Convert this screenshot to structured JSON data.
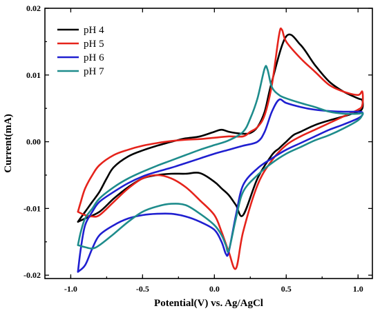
{
  "chart_data": {
    "type": "line",
    "title": "",
    "xlabel": "Potential(V) vs. Ag/AgCl",
    "ylabel": "Current(mA)",
    "xlim": [
      -1.18,
      1.1
    ],
    "ylim": [
      -0.0205,
      0.02
    ],
    "xticks": [
      -1.0,
      -0.5,
      0.0,
      0.5,
      1.0
    ],
    "xtick_labels": [
      "-1.0",
      "-0.5",
      "0.0",
      "0.5",
      "1.0"
    ],
    "yticks": [
      0.02,
      0.01,
      0.0,
      -0.01,
      -0.02
    ],
    "ytick_labels": [
      "0.02",
      "0.01",
      "0.00",
      "-0.01",
      "-0.02"
    ],
    "grid": false,
    "legend_position": "top-left",
    "series": [
      {
        "name": "pH 4",
        "color": "#000000",
        "x": [
          -0.95,
          -0.9,
          -0.8,
          -0.7,
          -0.6,
          -0.5,
          -0.4,
          -0.3,
          -0.2,
          -0.1,
          0.0,
          0.05,
          0.1,
          0.15,
          0.2,
          0.3,
          0.4,
          0.45,
          0.5,
          0.55,
          0.6,
          0.7,
          0.8,
          0.9,
          1.0,
          1.03,
          1.03,
          1.0,
          0.9,
          0.8,
          0.7,
          0.6,
          0.5,
          0.4,
          0.35,
          0.3,
          0.25,
          0.2,
          0.15,
          0.1,
          0.05,
          0.0,
          -0.1,
          -0.2,
          -0.3,
          -0.35,
          -0.4,
          -0.5,
          -0.6,
          -0.7,
          -0.75,
          -0.8,
          -0.85,
          -0.9,
          -0.95
        ],
        "y": [
          -0.012,
          -0.0115,
          -0.0105,
          -0.0085,
          -0.0068,
          -0.0055,
          -0.005,
          -0.0048,
          -0.0048,
          -0.0047,
          -0.006,
          -0.007,
          -0.008,
          -0.0095,
          -0.011,
          -0.0055,
          -0.002,
          -0.001,
          0.0,
          0.001,
          0.0015,
          0.0025,
          0.0032,
          0.0038,
          0.0045,
          0.005,
          0.0062,
          0.0065,
          0.0075,
          0.009,
          0.0115,
          0.0145,
          0.0158,
          0.009,
          0.0045,
          0.0022,
          0.0013,
          0.0012,
          0.0013,
          0.0015,
          0.0018,
          0.0015,
          0.0008,
          0.0005,
          0.0,
          -0.0003,
          -0.0006,
          -0.0013,
          -0.0022,
          -0.0038,
          -0.0055,
          -0.0075,
          -0.009,
          -0.0105,
          -0.012
        ]
      },
      {
        "name": "pH 5",
        "color": "#e5231b",
        "x": [
          -0.95,
          -0.9,
          -0.85,
          -0.8,
          -0.7,
          -0.6,
          -0.5,
          -0.4,
          -0.3,
          -0.2,
          -0.1,
          0.0,
          0.05,
          0.1,
          0.15,
          0.2,
          0.3,
          0.4,
          0.5,
          0.6,
          0.7,
          0.8,
          0.9,
          1.0,
          1.03,
          1.03,
          1.0,
          0.9,
          0.8,
          0.7,
          0.6,
          0.5,
          0.47,
          0.45,
          0.4,
          0.35,
          0.3,
          0.25,
          0.2,
          0.1,
          0.0,
          -0.1,
          -0.2,
          -0.3,
          -0.4,
          -0.5,
          -0.6,
          -0.7,
          -0.8,
          -0.85,
          -0.9,
          -0.93,
          -0.95
        ],
        "y": [
          -0.0105,
          -0.011,
          -0.0112,
          -0.011,
          -0.009,
          -0.007,
          -0.0055,
          -0.005,
          -0.0055,
          -0.0068,
          -0.0088,
          -0.011,
          -0.0135,
          -0.0165,
          -0.019,
          -0.0135,
          -0.0065,
          -0.0028,
          -0.0005,
          0.0008,
          0.0018,
          0.0028,
          0.0038,
          0.0048,
          0.0055,
          0.0075,
          0.007,
          0.0075,
          0.0085,
          0.0105,
          0.0125,
          0.015,
          0.0168,
          0.016,
          0.0085,
          0.004,
          0.0022,
          0.0015,
          0.0008,
          0.0008,
          0.0006,
          0.0004,
          0.0003,
          0.0001,
          -0.0002,
          -0.0006,
          -0.0012,
          -0.002,
          -0.0035,
          -0.005,
          -0.007,
          -0.009,
          -0.0105
        ]
      },
      {
        "name": "pH 6",
        "color": "#1f1fd0",
        "x": [
          -0.95,
          -0.9,
          -0.85,
          -0.8,
          -0.7,
          -0.6,
          -0.5,
          -0.4,
          -0.3,
          -0.2,
          -0.1,
          0.0,
          0.05,
          0.08,
          0.1,
          0.15,
          0.2,
          0.3,
          0.4,
          0.5,
          0.6,
          0.7,
          0.8,
          0.9,
          1.0,
          1.03,
          1.03,
          1.0,
          0.9,
          0.8,
          0.7,
          0.6,
          0.5,
          0.45,
          0.4,
          0.35,
          0.3,
          0.2,
          0.1,
          0.0,
          -0.1,
          -0.2,
          -0.3,
          -0.4,
          -0.5,
          -0.6,
          -0.7,
          -0.8,
          -0.85,
          -0.9,
          -0.93,
          -0.95
        ],
        "y": [
          -0.0195,
          -0.0185,
          -0.016,
          -0.014,
          -0.0125,
          -0.0115,
          -0.011,
          -0.0108,
          -0.0108,
          -0.0112,
          -0.012,
          -0.0132,
          -0.015,
          -0.0168,
          -0.0165,
          -0.011,
          -0.0065,
          -0.004,
          -0.0025,
          -0.0012,
          -0.0002,
          0.0008,
          0.0018,
          0.0026,
          0.0035,
          0.004,
          0.0044,
          0.0045,
          0.0045,
          0.0046,
          0.0048,
          0.0052,
          0.0058,
          0.0063,
          0.0045,
          0.0015,
          0.0,
          -0.0006,
          -0.0012,
          -0.0018,
          -0.0025,
          -0.0032,
          -0.0039,
          -0.0045,
          -0.0052,
          -0.0062,
          -0.0075,
          -0.009,
          -0.0105,
          -0.0125,
          -0.016,
          -0.0195
        ]
      },
      {
        "name": "pH 7",
        "color": "#1e8c8c",
        "x": [
          -0.95,
          -0.9,
          -0.85,
          -0.8,
          -0.7,
          -0.6,
          -0.5,
          -0.4,
          -0.3,
          -0.2,
          -0.1,
          0.0,
          0.05,
          0.08,
          0.1,
          0.15,
          0.2,
          0.3,
          0.4,
          0.5,
          0.6,
          0.7,
          0.8,
          0.9,
          1.0,
          1.03,
          1.03,
          1.0,
          0.9,
          0.8,
          0.7,
          0.6,
          0.5,
          0.45,
          0.4,
          0.37,
          0.35,
          0.3,
          0.25,
          0.2,
          0.1,
          0.0,
          -0.1,
          -0.2,
          -0.3,
          -0.4,
          -0.5,
          -0.6,
          -0.7,
          -0.8,
          -0.85,
          -0.9,
          -0.93,
          -0.95
        ],
        "y": [
          -0.0155,
          -0.0158,
          -0.016,
          -0.0155,
          -0.0138,
          -0.012,
          -0.0105,
          -0.0097,
          -0.0093,
          -0.0095,
          -0.0108,
          -0.0125,
          -0.014,
          -0.0155,
          -0.0163,
          -0.0115,
          -0.0075,
          -0.005,
          -0.0032,
          -0.0018,
          -0.0008,
          0.0002,
          0.001,
          0.002,
          0.0032,
          0.004,
          0.0043,
          0.0042,
          0.0042,
          0.0045,
          0.0052,
          0.0058,
          0.0065,
          0.007,
          0.0082,
          0.0108,
          0.011,
          0.0065,
          0.0035,
          0.0015,
          0.0002,
          -0.0005,
          -0.0012,
          -0.002,
          -0.0028,
          -0.0036,
          -0.0045,
          -0.0055,
          -0.0068,
          -0.0085,
          -0.01,
          -0.0115,
          -0.0135,
          -0.0155
        ]
      }
    ]
  }
}
